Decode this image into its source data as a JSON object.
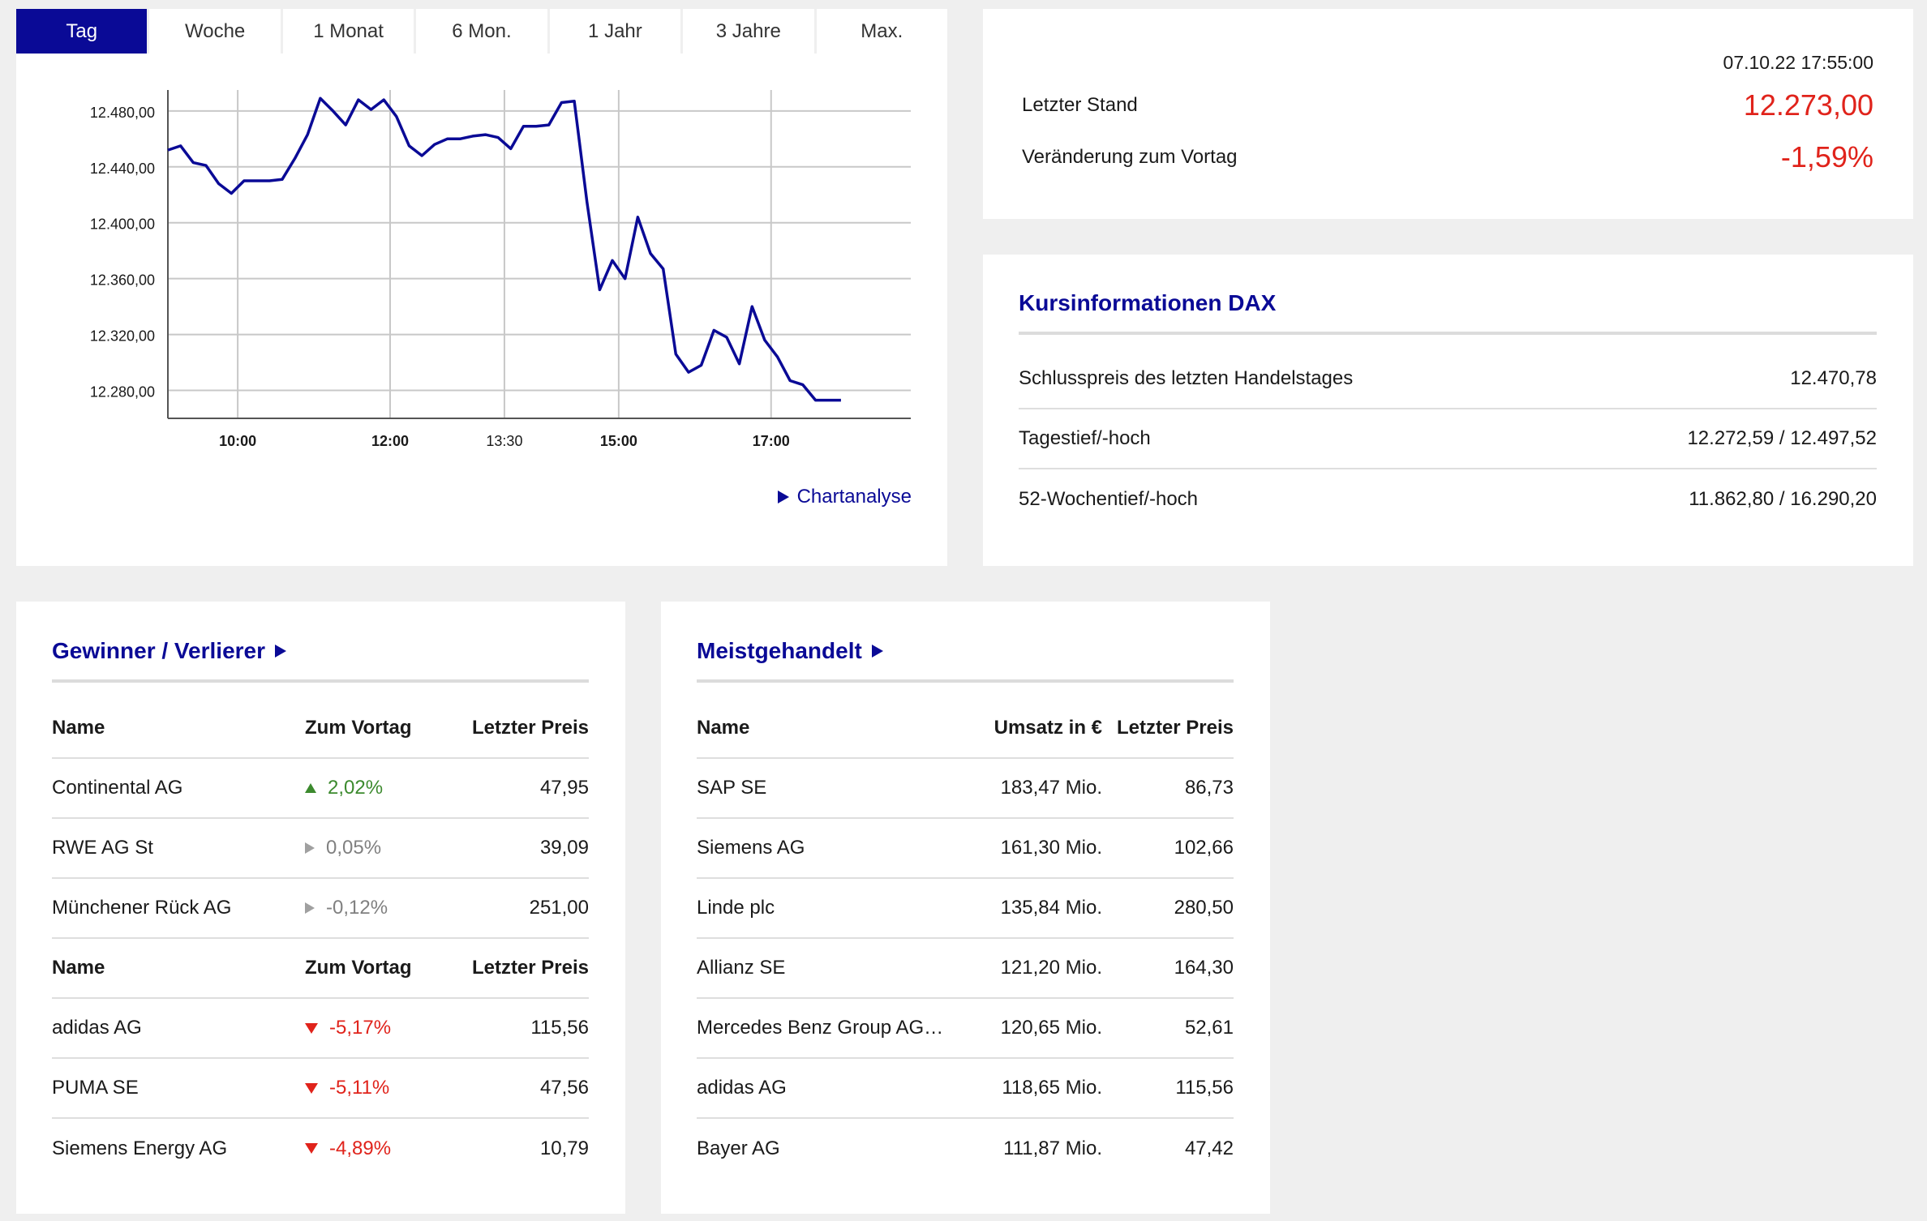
{
  "tabs": [
    "Tag",
    "Woche",
    "1 Monat",
    "6 Mon.",
    "1 Jahr",
    "3 Jahre",
    "Max."
  ],
  "active_tab": "Tag",
  "chart_link": "Chartanalyse",
  "colors": {
    "brand": "#0a0a96",
    "negative": "#e0231b",
    "positive": "#3c8a2e",
    "neutral": "#808080"
  },
  "quote": {
    "timestamp": "07.10.22 17:55:00",
    "last_label": "Letzter Stand",
    "last_value": "12.273,00",
    "change_label": "Veränderung zum Vortag",
    "change_value": "-1,59%"
  },
  "info": {
    "title": "Kursinformationen DAX",
    "rows": [
      {
        "label": "Schlusspreis des letzten Handelstages",
        "value": "12.470,78"
      },
      {
        "label": "Tagestief/-hoch",
        "value": "12.272,59 / 12.497,52"
      },
      {
        "label": "52-Wochentief/-hoch",
        "value": "11.862,80 / 16.290,20"
      }
    ]
  },
  "gainers_losers": {
    "title": "Gewinner / Verlierer",
    "headers": {
      "name": "Name",
      "change": "Zum Vortag",
      "price": "Letzter Preis"
    },
    "gainers": [
      {
        "name": "Continental AG",
        "change": "2,02%",
        "price": "47,95",
        "trend": "up"
      },
      {
        "name": "RWE AG St",
        "change": "0,05%",
        "price": "39,09",
        "trend": "flat"
      },
      {
        "name": "Münchener Rück AG",
        "change": "-0,12%",
        "price": "251,00",
        "trend": "flat"
      }
    ],
    "losers": [
      {
        "name": "adidas AG",
        "change": "-5,17%",
        "price": "115,56",
        "trend": "down"
      },
      {
        "name": "PUMA SE",
        "change": "-5,11%",
        "price": "47,56",
        "trend": "down"
      },
      {
        "name": "Siemens Energy AG",
        "change": "-4,89%",
        "price": "10,79",
        "trend": "down"
      }
    ]
  },
  "most_traded": {
    "title": "Meistgehandelt",
    "headers": {
      "name": "Name",
      "volume": "Umsatz in €",
      "price": "Letzter Preis"
    },
    "rows": [
      {
        "name": "SAP SE",
        "volume": "183,47 Mio.",
        "price": "86,73"
      },
      {
        "name": "Siemens AG",
        "volume": "161,30 Mio.",
        "price": "102,66"
      },
      {
        "name": "Linde plc",
        "volume": "135,84 Mio.",
        "price": "280,50"
      },
      {
        "name": "Allianz SE",
        "volume": "121,20 Mio.",
        "price": "164,30"
      },
      {
        "name": "Mercedes Benz Group AG…",
        "volume": "120,65 Mio.",
        "price": "52,61"
      },
      {
        "name": "adidas AG",
        "volume": "118,65 Mio.",
        "price": "115,56"
      },
      {
        "name": "Bayer AG",
        "volume": "111,87 Mio.",
        "price": "47,42"
      }
    ]
  },
  "chart_data": {
    "type": "line",
    "ylim": [
      12260,
      12495
    ],
    "yticks": [
      12480,
      12440,
      12400,
      12360,
      12320,
      12280
    ],
    "ytick_labels": [
      "12.480,00",
      "12.440,00",
      "12.400,00",
      "12.360,00",
      "12.320,00",
      "12.280,00"
    ],
    "xlim": [
      "09:05",
      "18:50"
    ],
    "xticks": [
      "10:00",
      "12:00",
      "13:30",
      "15:00",
      "17:00"
    ],
    "xtick_bold": [
      true,
      true,
      false,
      true,
      true
    ],
    "grid": true,
    "series": [
      {
        "x": [
          "09:05",
          "09:15",
          "09:25",
          "09:35",
          "09:45",
          "09:55",
          "10:05",
          "10:15",
          "10:25",
          "10:35",
          "10:45",
          "10:55",
          "11:05",
          "11:15",
          "11:25",
          "11:35",
          "11:45",
          "11:55",
          "12:05",
          "12:15",
          "12:25",
          "12:35",
          "12:45",
          "12:55",
          "13:05",
          "13:15",
          "13:25",
          "13:35",
          "13:45",
          "13:55",
          "14:05",
          "14:15",
          "14:25",
          "14:35",
          "14:45",
          "14:55",
          "15:05",
          "15:15",
          "15:25",
          "15:35",
          "15:45",
          "15:55",
          "16:05",
          "16:15",
          "16:25",
          "16:35",
          "16:45",
          "16:55",
          "17:05",
          "17:15",
          "17:25",
          "17:35",
          "17:45",
          "17:55"
        ],
        "values": [
          12452,
          12455,
          12443,
          12441,
          12428,
          12421,
          12430,
          12430,
          12430,
          12431,
          12446,
          12463,
          12489,
          12480,
          12470,
          12488,
          12481,
          12488,
          12476,
          12455,
          12448,
          12456,
          12460,
          12460,
          12462,
          12463,
          12461,
          12453,
          12469,
          12469,
          12470,
          12486,
          12487,
          12415,
          12352,
          12373,
          12360,
          12404,
          12378,
          12367,
          12306,
          12293,
          12298,
          12323,
          12318,
          12299,
          12340,
          12316,
          12304,
          12287,
          12284,
          12273,
          12273,
          12273
        ]
      }
    ]
  }
}
